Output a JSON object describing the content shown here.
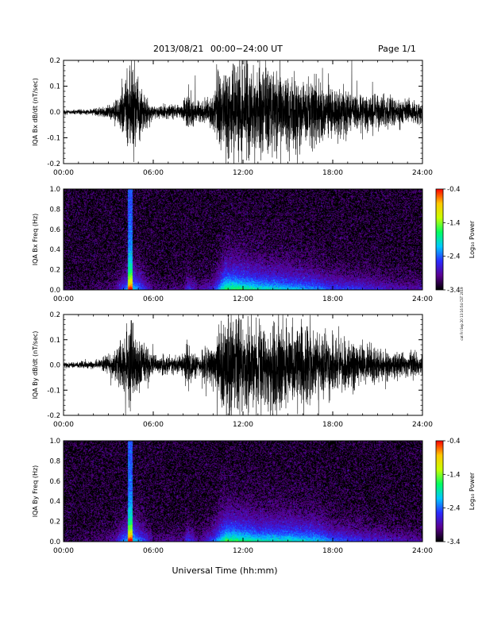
{
  "header": {
    "date": "2013/08/21",
    "time_range": "00:00−24:00 UT",
    "page": "Page 1/1"
  },
  "footer": {
    "xlabel": "Universal Time (hh:mm)"
  },
  "side_note": "cat Fri Sep 20 13:16:54 CST 2019",
  "chart_data": [
    {
      "type": "line",
      "ylabel": "IQA Bx dB/dt (nT/sec)",
      "xlim": [
        0,
        24
      ],
      "ylim": [
        -0.2,
        0.2
      ],
      "xticks": [
        "00:00",
        "06:00",
        "12:00",
        "18:00",
        "24:00"
      ],
      "yticks": [
        "-0.2",
        "-0.1",
        "0.0",
        "0.1",
        "0.2"
      ],
      "series_color": "#000000",
      "activity_envelope": [
        {
          "t": 0.0,
          "amp": 0.012
        },
        {
          "t": 2.0,
          "amp": 0.015
        },
        {
          "t": 3.4,
          "amp": 0.05
        },
        {
          "t": 4.0,
          "amp": 0.15
        },
        {
          "t": 4.5,
          "amp": 0.25
        },
        {
          "t": 5.2,
          "amp": 0.15
        },
        {
          "t": 6.0,
          "amp": 0.04
        },
        {
          "t": 8.0,
          "amp": 0.04
        },
        {
          "t": 8.3,
          "amp": 0.12
        },
        {
          "t": 9.0,
          "amp": 0.05
        },
        {
          "t": 10.0,
          "amp": 0.1
        },
        {
          "t": 10.8,
          "amp": 0.3
        },
        {
          "t": 11.5,
          "amp": 0.3
        },
        {
          "t": 13.0,
          "amp": 0.25
        },
        {
          "t": 15.0,
          "amp": 0.22
        },
        {
          "t": 17.0,
          "amp": 0.18
        },
        {
          "t": 18.0,
          "amp": 0.14
        },
        {
          "t": 20.0,
          "amp": 0.12
        },
        {
          "t": 22.0,
          "amp": 0.08
        },
        {
          "t": 24.0,
          "amp": 0.06
        }
      ]
    },
    {
      "type": "heatmap",
      "ylabel": "IQA Bx Freq (Hz)",
      "xlim": [
        0,
        24
      ],
      "ylim": [
        0.0,
        1.0
      ],
      "xticks": [
        "00:00",
        "06:00",
        "12:00",
        "18:00",
        "24:00"
      ],
      "yticks": [
        "0.0",
        "0.2",
        "0.4",
        "0.6",
        "0.8",
        "1.0"
      ],
      "colorbar": {
        "label": "Log₁₀ Power",
        "range": [
          -3.4,
          -0.4
        ],
        "ticks": [
          "-0.4",
          "-1.4",
          "-2.4",
          "-3.4"
        ],
        "colors": [
          "#000000",
          "#5a0090",
          "#2a2aff",
          "#00c8ff",
          "#00ff60",
          "#c8ff00",
          "#ffc800",
          "#ff0000"
        ]
      },
      "activity_envelope": [
        {
          "t": 0.0,
          "amp": 0.012
        },
        {
          "t": 2.0,
          "amp": 0.015
        },
        {
          "t": 3.4,
          "amp": 0.05
        },
        {
          "t": 4.0,
          "amp": 0.15
        },
        {
          "t": 4.5,
          "amp": 0.25
        },
        {
          "t": 5.2,
          "amp": 0.15
        },
        {
          "t": 6.0,
          "amp": 0.04
        },
        {
          "t": 8.0,
          "amp": 0.04
        },
        {
          "t": 8.3,
          "amp": 0.12
        },
        {
          "t": 9.0,
          "amp": 0.05
        },
        {
          "t": 10.0,
          "amp": 0.1
        },
        {
          "t": 10.8,
          "amp": 0.3
        },
        {
          "t": 11.5,
          "amp": 0.3
        },
        {
          "t": 13.0,
          "amp": 0.25
        },
        {
          "t": 15.0,
          "amp": 0.22
        },
        {
          "t": 17.0,
          "amp": 0.18
        },
        {
          "t": 18.0,
          "amp": 0.14
        },
        {
          "t": 20.0,
          "amp": 0.12
        },
        {
          "t": 22.0,
          "amp": 0.08
        },
        {
          "t": 24.0,
          "amp": 0.06
        }
      ]
    },
    {
      "type": "line",
      "ylabel": "IQA By dB/dt (nT/sec)",
      "xlim": [
        0,
        24
      ],
      "ylim": [
        -0.2,
        0.2
      ],
      "xticks": [
        "00:00",
        "06:00",
        "12:00",
        "18:00",
        "24:00"
      ],
      "yticks": [
        "-0.2",
        "-0.1",
        "0.0",
        "0.1",
        "0.2"
      ],
      "series_color": "#000000",
      "activity_envelope": [
        {
          "t": 0.0,
          "amp": 0.015
        },
        {
          "t": 2.0,
          "amp": 0.02
        },
        {
          "t": 3.4,
          "amp": 0.07
        },
        {
          "t": 4.0,
          "amp": 0.18
        },
        {
          "t": 4.5,
          "amp": 0.25
        },
        {
          "t": 5.2,
          "amp": 0.16
        },
        {
          "t": 6.0,
          "amp": 0.05
        },
        {
          "t": 8.0,
          "amp": 0.05
        },
        {
          "t": 8.3,
          "amp": 0.14
        },
        {
          "t": 9.0,
          "amp": 0.05
        },
        {
          "t": 10.0,
          "amp": 0.15
        },
        {
          "t": 10.8,
          "amp": 0.3
        },
        {
          "t": 11.5,
          "amp": 0.3
        },
        {
          "t": 13.0,
          "amp": 0.25
        },
        {
          "t": 15.0,
          "amp": 0.25
        },
        {
          "t": 17.0,
          "amp": 0.22
        },
        {
          "t": 18.0,
          "amp": 0.16
        },
        {
          "t": 20.0,
          "amp": 0.12
        },
        {
          "t": 22.0,
          "amp": 0.08
        },
        {
          "t": 24.0,
          "amp": 0.06
        }
      ]
    },
    {
      "type": "heatmap",
      "ylabel": "IQA By Freq (Hz)",
      "xlim": [
        0,
        24
      ],
      "ylim": [
        0.0,
        1.0
      ],
      "xticks": [
        "00:00",
        "06:00",
        "12:00",
        "18:00",
        "24:00"
      ],
      "yticks": [
        "0.0",
        "0.2",
        "0.4",
        "0.6",
        "0.8",
        "1.0"
      ],
      "colorbar": {
        "label": "Log₁₀ Power",
        "range": [
          -3.4,
          -0.4
        ],
        "ticks": [
          "-0.4",
          "-1.4",
          "-2.4",
          "-3.4"
        ],
        "colors": [
          "#000000",
          "#5a0090",
          "#2a2aff",
          "#00c8ff",
          "#00ff60",
          "#c8ff00",
          "#ffc800",
          "#ff0000"
        ]
      },
      "activity_envelope": [
        {
          "t": 0.0,
          "amp": 0.015
        },
        {
          "t": 2.0,
          "amp": 0.02
        },
        {
          "t": 3.4,
          "amp": 0.07
        },
        {
          "t": 4.0,
          "amp": 0.18
        },
        {
          "t": 4.5,
          "amp": 0.25
        },
        {
          "t": 5.2,
          "amp": 0.16
        },
        {
          "t": 6.0,
          "amp": 0.05
        },
        {
          "t": 8.0,
          "amp": 0.05
        },
        {
          "t": 8.3,
          "amp": 0.14
        },
        {
          "t": 9.0,
          "amp": 0.05
        },
        {
          "t": 10.0,
          "amp": 0.15
        },
        {
          "t": 10.8,
          "amp": 0.3
        },
        {
          "t": 11.5,
          "amp": 0.3
        },
        {
          "t": 13.0,
          "amp": 0.25
        },
        {
          "t": 15.0,
          "amp": 0.25
        },
        {
          "t": 17.0,
          "amp": 0.22
        },
        {
          "t": 18.0,
          "amp": 0.16
        },
        {
          "t": 20.0,
          "amp": 0.12
        },
        {
          "t": 22.0,
          "amp": 0.08
        },
        {
          "t": 24.0,
          "amp": 0.06
        }
      ]
    }
  ]
}
